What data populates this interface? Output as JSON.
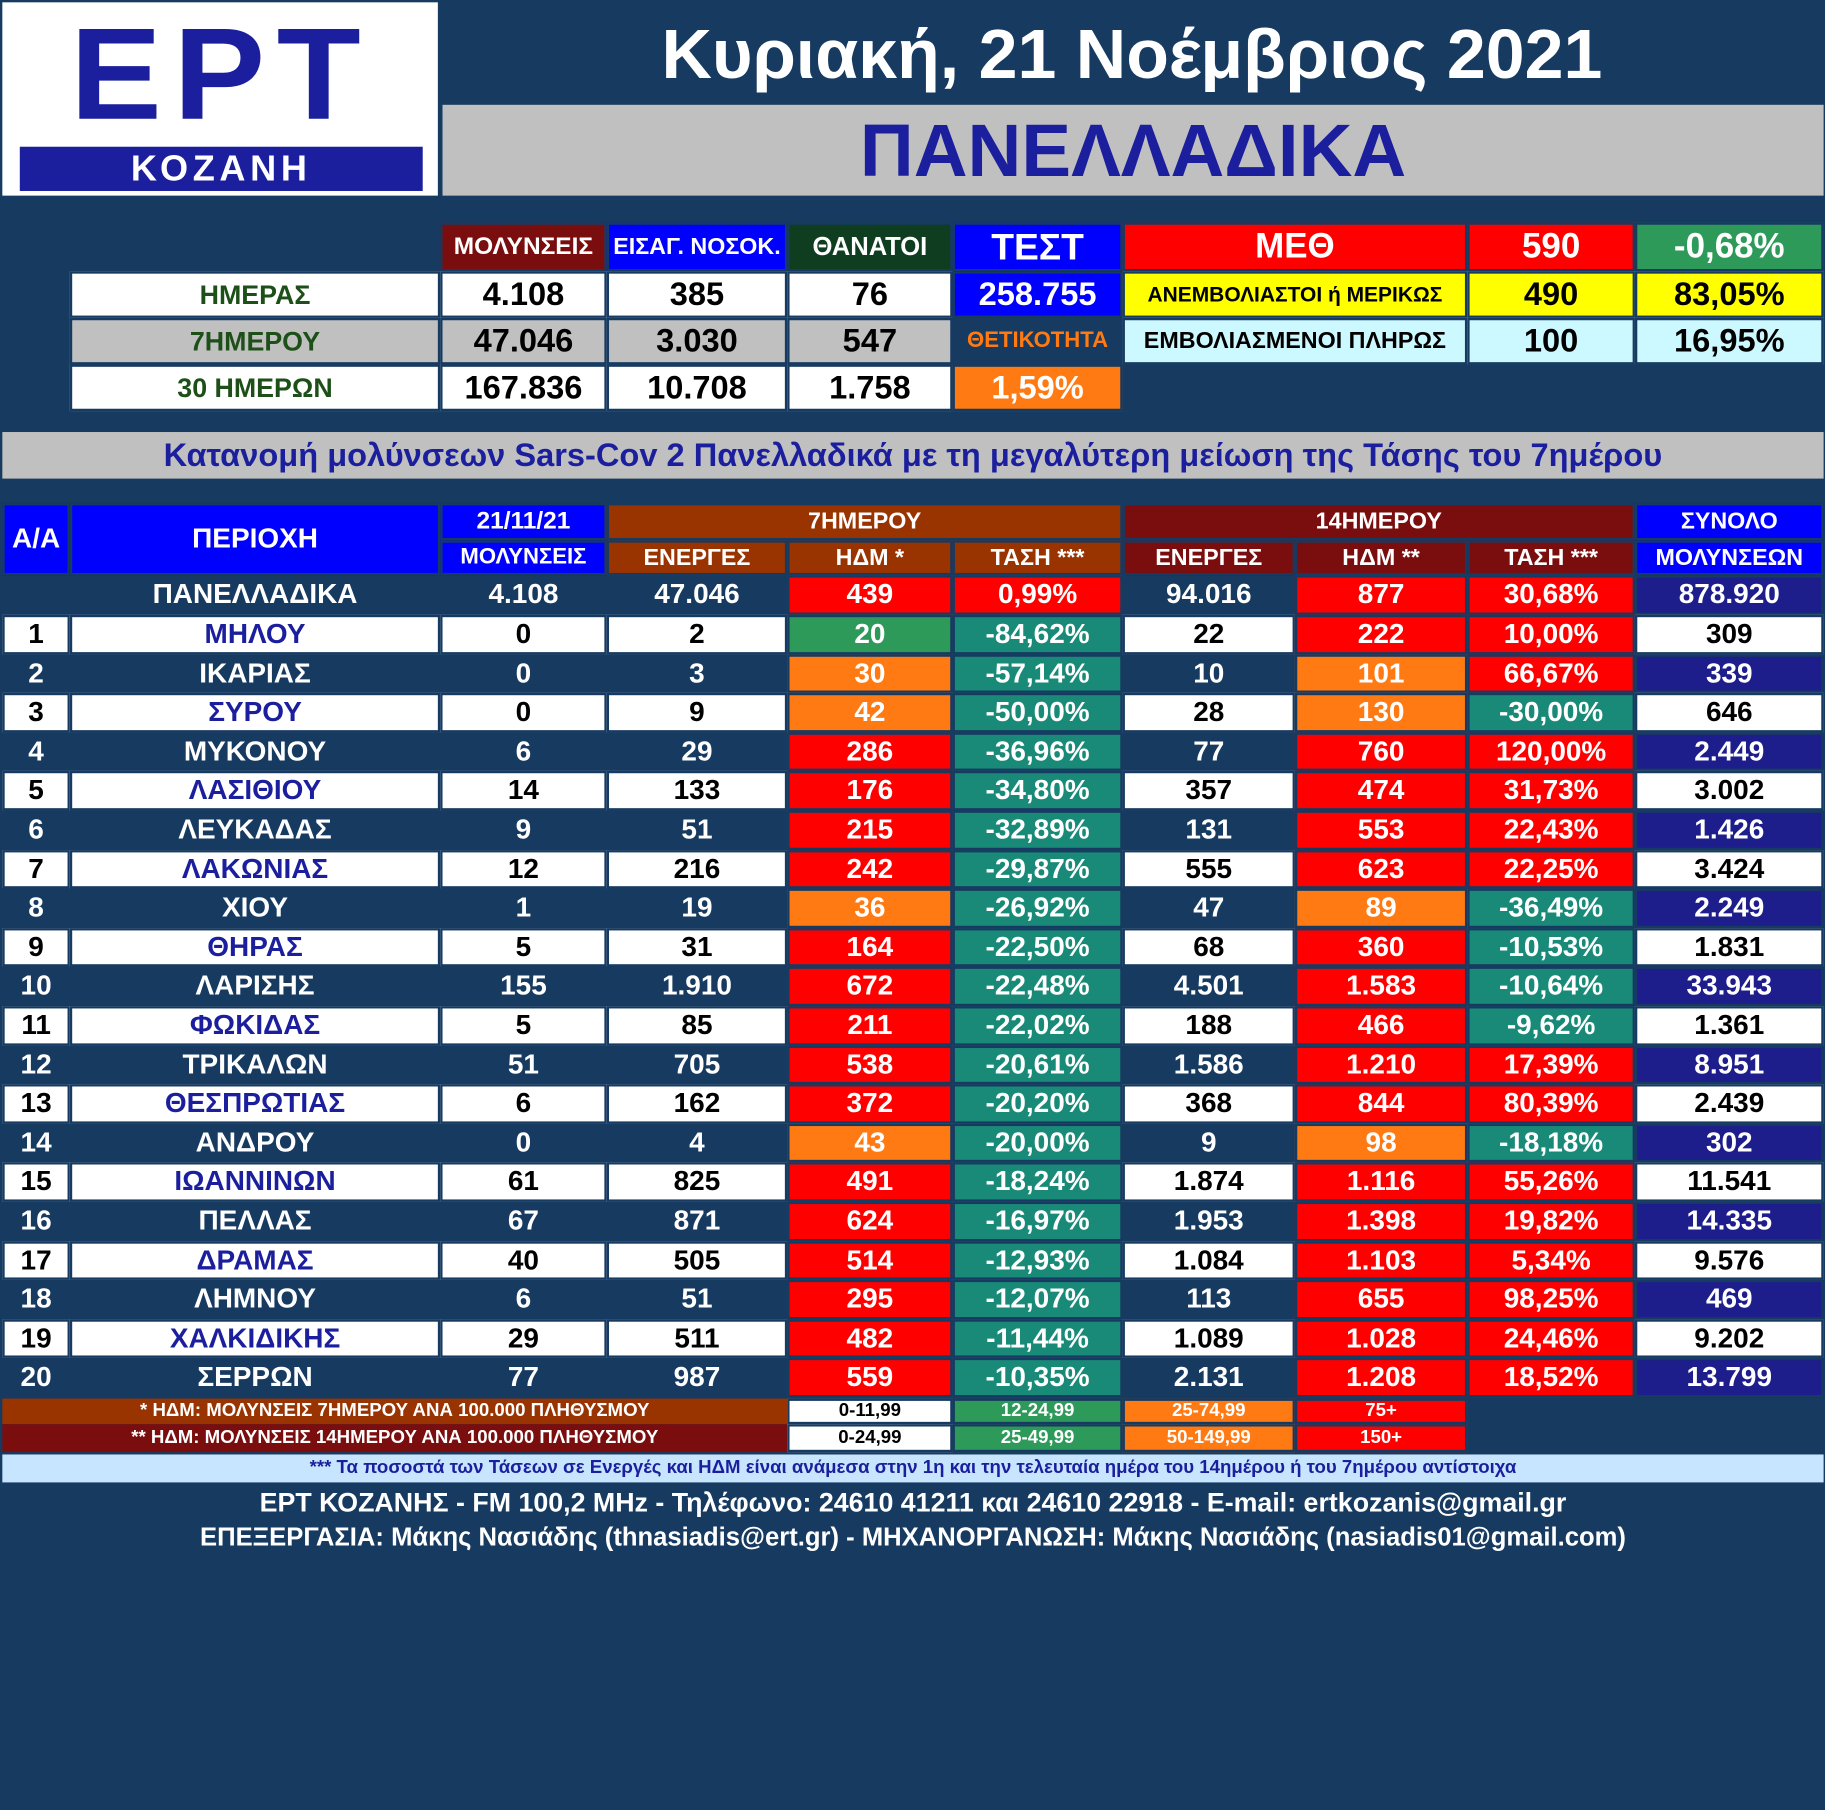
{
  "logo": {
    "brand": "ΕΡΤ",
    "city": "ΚΟΖΑΝΗ"
  },
  "date": "Κυριακή, 21 Νοέμβριος 2021",
  "region": "ΠΑΝΕΛΛΑΔΙΚΑ",
  "summary": {
    "col_headers": [
      "ΜΟΛΥΝΣΕΙΣ",
      "ΕΙΣΑΓ. ΝΟΣΟΚ.",
      "ΘΑΝΑΤΟΙ"
    ],
    "rows": [
      {
        "label": "ΗΜΕΡΑΣ",
        "values": [
          "4.108",
          "385",
          "76"
        ]
      },
      {
        "label": "7ΗΜΕΡΟΥ",
        "values": [
          "47.046",
          "3.030",
          "547"
        ]
      },
      {
        "label": "30 ΗΜΕΡΩΝ",
        "values": [
          "167.836",
          "10.708",
          "1.758"
        ]
      }
    ],
    "test_label": "ΤΕΣΤ",
    "test_value": "258.755",
    "positivity_label": "ΘΕΤΙΚΟΤΗΤΑ",
    "positivity_value": "1,59%",
    "icu_label": "ΜΕΘ",
    "icu_value": "590",
    "icu_change": "-0,68%",
    "unvaccinated_label": "ΑΝΕΜΒΟΛΙΑΣΤΟΙ ή ΜΕΡΙΚΩΣ",
    "unvaccinated_value": "490",
    "unvaccinated_pct": "83,05%",
    "vaccinated_label": "ΕΜΒΟΛΙΑΣΜΕΝΟΙ ΠΛΗΡΩΣ",
    "vaccinated_value": "100",
    "vaccinated_pct": "16,95%"
  },
  "banner": "Κατανομή μολύνσεων Sars-Cov 2 Πανελλαδικά με τη μεγαλύτερη μείωση της Τάσης του 7ημέρου",
  "table": {
    "h_aa": "Α/Α",
    "h_region": "ΠΕΡΙΟΧΗ",
    "h_date": "21/11/21",
    "h_infections": "ΜΟΛΥΝΣΕΙΣ",
    "h_7day": "7ΗΜΕΡΟΥ",
    "h_14day": "14ΗΜΕΡΟΥ",
    "h_total1": "ΣΥΝΟΛΟ",
    "h_total2": "ΜΟΛΥΝΣΕΩΝ",
    "h_active": "ΕΝΕΡΓΕΣ",
    "h_idm7": "ΗΔΜ *",
    "h_trend7": "ΤΑΣΗ ***",
    "h_active14": "ΕΝΕΡΓΕΣ",
    "h_idm14": "ΗΔΜ **",
    "h_trend14": "ΤΑΣΗ ***",
    "national": [
      "ΠΑΝΕΛΛΑΔΙΚΑ",
      "4.108",
      "47.046",
      "439",
      "0,99%",
      "94.016",
      "877",
      "30,68%",
      "878.920"
    ],
    "rows": [
      [
        "1",
        "ΜΗΛΟΥ",
        "0",
        "2",
        "20",
        "-84,62%",
        "22",
        "222",
        "10,00%",
        "309"
      ],
      [
        "2",
        "ΙΚΑΡΙΑΣ",
        "0",
        "3",
        "30",
        "-57,14%",
        "10",
        "101",
        "66,67%",
        "339"
      ],
      [
        "3",
        "ΣΥΡΟΥ",
        "0",
        "9",
        "42",
        "-50,00%",
        "28",
        "130",
        "-30,00%",
        "646"
      ],
      [
        "4",
        "ΜΥΚΟΝΟΥ",
        "6",
        "29",
        "286",
        "-36,96%",
        "77",
        "760",
        "120,00%",
        "2.449"
      ],
      [
        "5",
        "ΛΑΣΙΘΙΟΥ",
        "14",
        "133",
        "176",
        "-34,80%",
        "357",
        "474",
        "31,73%",
        "3.002"
      ],
      [
        "6",
        "ΛΕΥΚΑΔΑΣ",
        "9",
        "51",
        "215",
        "-32,89%",
        "131",
        "553",
        "22,43%",
        "1.426"
      ],
      [
        "7",
        "ΛΑΚΩΝΙΑΣ",
        "12",
        "216",
        "242",
        "-29,87%",
        "555",
        "623",
        "22,25%",
        "3.424"
      ],
      [
        "8",
        "ΧΙΟΥ",
        "1",
        "19",
        "36",
        "-26,92%",
        "47",
        "89",
        "-36,49%",
        "2.249"
      ],
      [
        "9",
        "ΘΗΡΑΣ",
        "5",
        "31",
        "164",
        "-22,50%",
        "68",
        "360",
        "-10,53%",
        "1.831"
      ],
      [
        "10",
        "ΛΑΡΙΣΗΣ",
        "155",
        "1.910",
        "672",
        "-22,48%",
        "4.501",
        "1.583",
        "-10,64%",
        "33.943"
      ],
      [
        "11",
        "ΦΩΚΙΔΑΣ",
        "5",
        "85",
        "211",
        "-22,02%",
        "188",
        "466",
        "-9,62%",
        "1.361"
      ],
      [
        "12",
        "ΤΡΙΚΑΛΩΝ",
        "51",
        "705",
        "538",
        "-20,61%",
        "1.586",
        "1.210",
        "17,39%",
        "8.951"
      ],
      [
        "13",
        "ΘΕΣΠΡΩΤΙΑΣ",
        "6",
        "162",
        "372",
        "-20,20%",
        "368",
        "844",
        "80,39%",
        "2.439"
      ],
      [
        "14",
        "ΑΝΔΡΟΥ",
        "0",
        "4",
        "43",
        "-20,00%",
        "9",
        "98",
        "-18,18%",
        "302"
      ],
      [
        "15",
        "ΙΩΑΝΝΙΝΩΝ",
        "61",
        "825",
        "491",
        "-18,24%",
        "1.874",
        "1.116",
        "55,26%",
        "11.541"
      ],
      [
        "16",
        "ΠΕΛΛΑΣ",
        "67",
        "871",
        "624",
        "-16,97%",
        "1.953",
        "1.398",
        "19,82%",
        "14.335"
      ],
      [
        "17",
        "ΔΡΑΜΑΣ",
        "40",
        "505",
        "514",
        "-12,93%",
        "1.084",
        "1.103",
        "5,34%",
        "9.576"
      ],
      [
        "18",
        "ΛΗΜΝΟΥ",
        "6",
        "51",
        "295",
        "-12,07%",
        "113",
        "655",
        "98,25%",
        "469"
      ],
      [
        "19",
        "ΧΑΛΚΙΔΙΚΗΣ",
        "29",
        "511",
        "482",
        "-11,44%",
        "1.089",
        "1.028",
        "24,46%",
        "9.202"
      ],
      [
        "20",
        "ΣΕΡΡΩΝ",
        "77",
        "987",
        "559",
        "-10,35%",
        "2.131",
        "1.208",
        "18,52%",
        "13.799"
      ]
    ]
  },
  "legend": {
    "note1": "* ΗΔΜ: ΜΟΛΥΝΣΕΙΣ 7ΗΜΕΡΟΥ ΑΝΑ 100.000 ΠΛΗΘΥΣΜΟΥ",
    "note2": "** ΗΔΜ: ΜΟΛΥΝΣΕΙΣ 14ΗΜΕΡΟΥ ΑΝΑ 100.000 ΠΛΗΘΥΣΜΟΥ",
    "ranges7": [
      "0-11,99",
      "12-24,99",
      "25-74,99",
      "75+"
    ],
    "ranges14": [
      "0-24,99",
      "25-49,99",
      "50-149,99",
      "150+"
    ]
  },
  "footer": {
    "note": "*** Τα ποσοστά των Τάσεων σε Ενεργές και ΗΔΜ είναι ανάμεσα στην 1η και την τελευταία ημέρα του 14ημέρου ή του 7ημέρου αντίστοιχα",
    "contact": "ΕΡΤ ΚΟΖΑΝΗΣ - FM 100,2 MHz - Τηλέφωνο:  24610 41211 και 24610 22918 - E-mail: ertkozanis@gmail.gr",
    "credits": "ΕΠΕΞΕΡΓΑΣΙΑ: Μάκης Νασιάδης (thnasiadis@ert.gr) - ΜΗΧΑΝΟΡΓΑΝΩΣΗ: Μάκης Νασιάδης (nasiadis01@gmail.com)"
  },
  "colors": {
    "navy": "#173a61",
    "red": "#ff0000",
    "green": "#2d9a5a",
    "teal": "#1a8a78",
    "orange": "#ff7a12",
    "blue": "#0000ff",
    "yellow": "#ffff00",
    "maroon": "#8b0000",
    "brown": "#993300"
  }
}
